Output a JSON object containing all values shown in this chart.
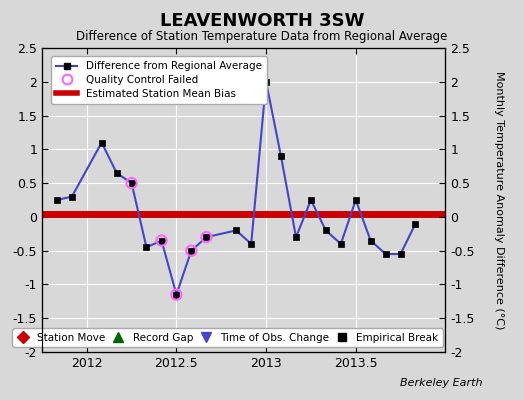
{
  "title": "LEAVENWORTH 3SW",
  "subtitle": "Difference of Station Temperature Data from Regional Average",
  "ylabel": "Monthly Temperature Anomaly Difference (°C)",
  "background_color": "#d8d8d8",
  "plot_bg_color": "#d8d8d8",
  "bias_line": 0.05,
  "xlim": [
    2011.75,
    2014.0
  ],
  "ylim": [
    -2.0,
    2.5
  ],
  "xticks": [
    2012,
    2012.5,
    2013,
    2013.5
  ],
  "yticks": [
    -2.0,
    -1.5,
    -1.0,
    -0.5,
    0.0,
    0.5,
    1.0,
    1.5,
    2.0,
    2.5
  ],
  "line_color": "#4444cc",
  "bias_color": "#cc0000",
  "marker_color": "#000000",
  "qc_color": "#ff66ff",
  "data_x": [
    2011.833,
    2011.917,
    2012.083,
    2012.167,
    2012.25,
    2012.333,
    2012.417,
    2012.5,
    2012.583,
    2012.667,
    2012.833,
    2012.917,
    2013.0,
    2013.083,
    2013.167,
    2013.25,
    2013.333,
    2013.417,
    2013.5,
    2013.583,
    2013.667,
    2013.75,
    2013.833
  ],
  "data_y": [
    0.25,
    0.3,
    1.1,
    0.65,
    0.5,
    -0.45,
    -0.35,
    -1.15,
    -0.5,
    -0.3,
    -0.2,
    -0.4,
    2.0,
    0.9,
    -0.3,
    0.25,
    -0.2,
    -0.4,
    0.25,
    -0.35,
    -0.55,
    -0.55,
    -0.1
  ],
  "qc_failed_x": [
    2012.25,
    2012.417,
    2012.5,
    2012.583,
    2012.667
  ],
  "qc_failed_y": [
    0.5,
    -0.35,
    -1.15,
    -0.5,
    -0.3
  ],
  "berkeley_earth_text": "Berkeley Earth",
  "grid_color": "#ffffff",
  "grid_alpha": 1.0,
  "bias_linewidth": 5,
  "main_linewidth": 1.5,
  "marker_size": 4
}
